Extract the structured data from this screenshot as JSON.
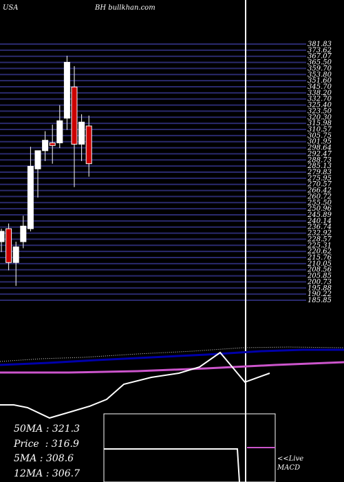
{
  "header": {
    "country": "USA",
    "symbol": "BH",
    "site": "bullkhan.com"
  },
  "colors": {
    "grid": "#2a2a6e",
    "up": "#ffffff",
    "down": "#cc0000",
    "ma_blue": "#0000aa",
    "ma_magenta": "#cc55cc",
    "white": "#ffffff"
  },
  "chart_data": {
    "type": "candlestick",
    "title": "",
    "price_labels": [
      "381.83",
      "373.62",
      "367.07",
      "365.50",
      "359.70",
      "353.80",
      "351.60",
      "345.70",
      "338.20",
      "332.70",
      "325.40",
      "323.50",
      "320.30",
      "315.98",
      "310.57",
      "305.75",
      "301.95",
      "298.64",
      "292.47",
      "288.73",
      "285.13",
      "279.83",
      "275.95",
      "270.57",
      "266.42",
      "260.72",
      "255.50",
      "250.96",
      "245.89",
      "240.14",
      "236.74",
      "232.92",
      "228.57",
      "225.31",
      "220.62",
      "215.76",
      "210.05",
      "208.56",
      "205.85",
      "200.73",
      "195.88",
      "190.22",
      "185.85"
    ],
    "price_range": [
      185,
      382
    ],
    "candles": [
      {
        "open": 230,
        "high": 240,
        "low": 222,
        "close": 238
      },
      {
        "open": 240,
        "high": 244,
        "low": 208,
        "close": 214
      },
      {
        "open": 214,
        "high": 230,
        "low": 196,
        "close": 226
      },
      {
        "open": 230,
        "high": 250,
        "low": 225,
        "close": 242
      },
      {
        "open": 240,
        "high": 303,
        "low": 238,
        "close": 288
      },
      {
        "open": 286,
        "high": 300,
        "low": 264,
        "close": 300
      },
      {
        "open": 300,
        "high": 315,
        "low": 292,
        "close": 308
      },
      {
        "open": 306,
        "high": 320,
        "low": 290,
        "close": 304
      },
      {
        "open": 306,
        "high": 335,
        "low": 302,
        "close": 323
      },
      {
        "open": 325,
        "high": 373,
        "low": 316,
        "close": 368
      },
      {
        "open": 349,
        "high": 365,
        "low": 272,
        "close": 305
      },
      {
        "open": 305,
        "high": 328,
        "low": 292,
        "close": 322
      },
      {
        "open": 319,
        "high": 327,
        "low": 280,
        "close": 290
      }
    ],
    "moving_averages": [
      {
        "name": "50MA",
        "value": "321.3"
      },
      {
        "name": "Price",
        "value": "316.9"
      },
      {
        "name": "5MA",
        "value": "308.6"
      },
      {
        "name": "12MA",
        "value": "306.7"
      }
    ],
    "macd_label": [
      "<<Live",
      "MACD"
    ]
  }
}
